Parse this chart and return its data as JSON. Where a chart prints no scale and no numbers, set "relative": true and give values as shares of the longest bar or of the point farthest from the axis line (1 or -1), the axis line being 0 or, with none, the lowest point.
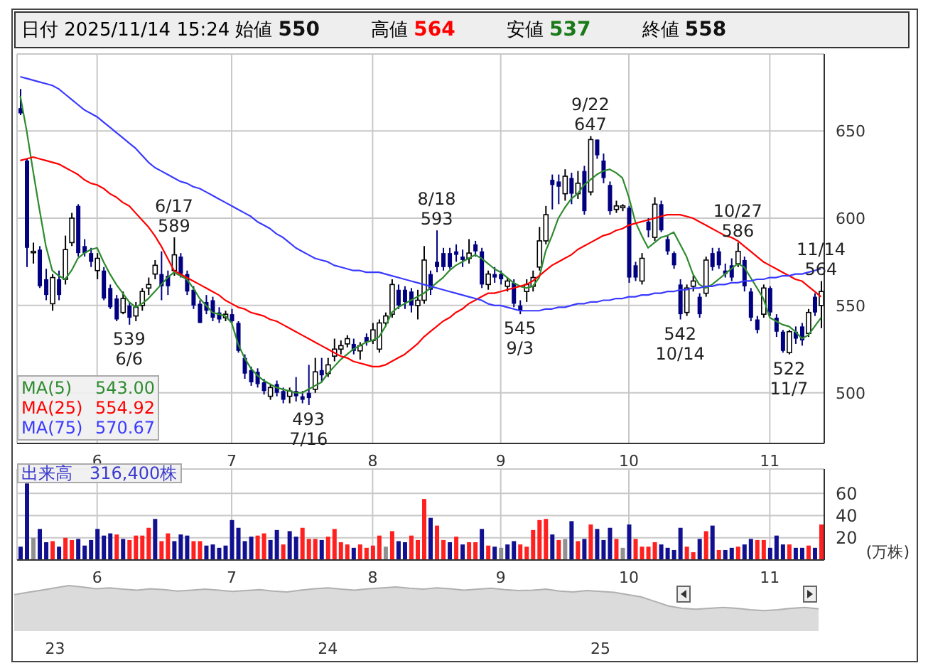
{
  "chart_data": [
    {
      "type": "candlestick",
      "title": "日付 2025/11/14 15:24",
      "categories": [
        null,
        null,
        null,
        null,
        null,
        null,
        null,
        null,
        null,
        null,
        null,
        null,
        "6",
        null,
        null,
        null,
        null,
        null,
        null,
        null,
        null,
        null,
        null,
        null,
        null,
        null,
        null,
        null,
        null,
        null,
        null,
        null,
        null,
        "7",
        null,
        null,
        null,
        null,
        null,
        null,
        null,
        null,
        null,
        null,
        null,
        null,
        null,
        null,
        null,
        null,
        null,
        null,
        null,
        null,
        null,
        "8",
        null,
        null,
        null,
        null,
        null,
        null,
        null,
        null,
        null,
        null,
        null,
        null,
        null,
        null,
        null,
        null,
        null,
        null,
        null,
        "9",
        null,
        null,
        null,
        null,
        null,
        null,
        null,
        null,
        null,
        null,
        null,
        null,
        null,
        null,
        null,
        null,
        null,
        null,
        null,
        "10",
        null,
        null,
        null,
        null,
        null,
        null,
        null,
        null,
        null,
        null,
        null,
        null,
        null,
        null,
        null,
        null,
        null,
        null,
        null,
        null,
        null,
        "11",
        null,
        null,
        null,
        null,
        null,
        null,
        null,
        null
      ],
      "ohlc": [
        [
          663,
          674,
          659,
          660
        ],
        [
          633,
          634,
          572,
          583
        ],
        [
          581,
          586,
          574,
          581
        ],
        [
          582,
          584,
          560,
          561
        ],
        [
          565,
          571,
          553,
          556
        ],
        [
          551,
          568,
          547,
          566
        ],
        [
          565,
          570,
          553,
          556
        ],
        [
          565,
          590,
          562,
          582
        ],
        [
          586,
          603,
          584,
          600
        ],
        [
          607,
          608,
          578,
          580
        ],
        [
          584,
          588,
          578,
          580
        ],
        [
          580,
          583,
          572,
          575
        ],
        [
          570,
          580,
          565,
          577
        ],
        [
          570,
          572,
          553,
          554
        ],
        [
          560,
          562,
          548,
          549
        ],
        [
          554,
          556,
          541,
          542
        ],
        [
          546,
          558,
          545,
          554
        ],
        [
          550,
          552,
          539,
          543
        ],
        [
          544,
          552,
          541,
          549
        ],
        [
          550,
          560,
          547,
          558
        ],
        [
          560,
          566,
          556,
          562
        ],
        [
          568,
          576,
          565,
          573
        ],
        [
          568,
          581,
          553,
          561
        ],
        [
          567,
          570,
          556,
          561
        ],
        [
          570,
          589,
          567,
          579
        ],
        [
          578,
          580,
          566,
          568
        ],
        [
          568,
          570,
          556,
          558
        ],
        [
          559,
          561,
          548,
          550
        ],
        [
          551,
          553,
          540,
          540
        ],
        [
          552,
          556,
          545,
          547
        ],
        [
          553,
          555,
          541,
          543
        ],
        [
          546,
          549,
          540,
          542
        ],
        [
          543,
          547,
          541,
          545
        ],
        [
          545,
          548,
          540,
          541
        ],
        [
          540,
          541,
          523,
          524
        ],
        [
          520,
          522,
          508,
          511
        ],
        [
          513,
          515,
          504,
          506
        ],
        [
          512,
          514,
          503,
          505
        ],
        [
          506,
          508,
          499,
          501
        ],
        [
          498,
          505,
          496,
          503
        ],
        [
          505,
          507,
          498,
          500
        ],
        [
          501,
          503,
          494,
          496
        ],
        [
          498,
          503,
          494,
          501
        ],
        [
          501,
          509,
          495,
          498
        ],
        [
          498,
          501,
          494,
          496
        ],
        [
          500,
          516,
          493,
          497
        ],
        [
          502,
          520,
          500,
          512
        ],
        [
          513,
          520,
          506,
          510
        ],
        [
          511,
          520,
          509,
          516
        ],
        [
          521,
          531,
          518,
          525
        ],
        [
          525,
          530,
          522,
          527
        ],
        [
          528,
          533,
          526,
          531
        ],
        [
          528,
          531,
          522,
          524
        ],
        [
          524,
          529,
          519,
          527
        ],
        [
          532,
          534,
          527,
          529
        ],
        [
          530,
          540,
          528,
          536
        ],
        [
          525,
          542,
          523,
          540
        ],
        [
          540,
          546,
          538,
          544
        ],
        [
          545,
          565,
          543,
          562
        ],
        [
          559,
          562,
          548,
          550
        ],
        [
          559,
          561,
          548,
          552
        ],
        [
          558,
          560,
          546,
          550
        ],
        [
          550,
          559,
          542,
          553
        ],
        [
          553,
          584,
          551,
          576
        ],
        [
          568,
          570,
          556,
          559
        ],
        [
          575,
          593,
          569,
          572
        ],
        [
          580,
          583,
          570,
          572
        ],
        [
          580,
          583,
          571,
          572
        ],
        [
          581,
          585,
          575,
          579
        ],
        [
          578,
          582,
          572,
          576
        ],
        [
          577,
          588,
          574,
          580
        ],
        [
          585,
          587,
          578,
          581
        ],
        [
          581,
          583,
          560,
          562
        ],
        [
          562,
          570,
          559,
          568
        ],
        [
          568,
          572,
          563,
          566
        ],
        [
          568,
          570,
          562,
          565
        ],
        [
          561,
          566,
          558,
          564
        ],
        [
          563,
          565,
          549,
          551
        ],
        [
          550,
          553,
          545,
          547
        ],
        [
          558,
          565,
          552,
          562
        ],
        [
          561,
          570,
          558,
          566
        ],
        [
          572,
          595,
          570,
          587
        ],
        [
          587,
          607,
          585,
          602
        ],
        [
          622,
          625,
          605,
          619
        ],
        [
          621,
          625,
          608,
          618
        ],
        [
          614,
          628,
          610,
          624
        ],
        [
          623,
          626,
          608,
          614
        ],
        [
          614,
          627,
          611,
          620
        ],
        [
          627,
          630,
          602,
          604
        ],
        [
          615,
          647,
          613,
          645
        ],
        [
          645,
          645,
          634,
          636
        ],
        [
          633,
          637,
          620,
          623
        ],
        [
          619,
          621,
          602,
          604
        ],
        [
          605,
          610,
          603,
          607
        ],
        [
          606,
          608,
          604,
          607
        ],
        [
          606,
          607,
          563,
          566
        ],
        [
          573,
          575,
          564,
          566
        ],
        [
          564,
          580,
          562,
          577
        ],
        [
          598,
          600,
          589,
          593
        ],
        [
          589,
          612,
          587,
          608
        ],
        [
          608,
          610,
          592,
          593
        ],
        [
          588,
          590,
          579,
          581
        ],
        [
          580,
          581,
          571,
          573
        ],
        [
          562,
          565,
          542,
          545
        ],
        [
          546,
          562,
          544,
          560
        ],
        [
          561,
          567,
          558,
          564
        ],
        [
          555,
          557,
          543,
          545
        ],
        [
          557,
          578,
          555,
          576
        ],
        [
          580,
          583,
          570,
          572
        ],
        [
          581,
          583,
          571,
          573
        ],
        [
          570,
          574,
          566,
          568
        ],
        [
          573,
          577,
          564,
          566
        ],
        [
          574,
          586,
          572,
          581
        ],
        [
          576,
          578,
          558,
          561
        ],
        [
          558,
          560,
          541,
          543
        ],
        [
          542,
          544,
          534,
          536
        ],
        [
          545,
          562,
          543,
          560
        ],
        [
          560,
          561,
          544,
          546
        ],
        [
          543,
          545,
          532,
          535
        ],
        [
          535,
          536,
          523,
          524
        ],
        [
          523,
          536,
          522,
          535
        ],
        [
          535,
          538,
          528,
          531
        ],
        [
          538,
          540,
          527,
          530
        ],
        [
          534,
          548,
          532,
          546
        ],
        [
          555,
          557,
          544,
          546
        ],
        [
          550,
          564,
          537,
          558
        ]
      ],
      "series": [
        {
          "name": "MA(5) 543.00",
          "type": "line",
          "color": "#2e8b2e",
          "values": [
            670,
            650,
            627,
            605,
            584,
            570,
            567,
            565,
            570,
            577,
            580,
            582,
            583,
            575,
            568,
            562,
            557,
            552,
            549,
            551,
            554,
            558,
            562,
            566,
            569,
            567,
            565,
            560,
            554,
            550,
            546,
            545,
            544,
            540,
            528,
            520,
            514,
            510,
            507,
            505,
            503,
            502,
            501,
            500,
            500,
            502,
            504,
            506,
            511,
            515,
            519,
            522,
            525,
            527,
            529,
            530,
            532,
            538,
            546,
            549,
            551,
            553,
            555,
            557,
            560,
            563,
            566,
            570,
            573,
            575,
            577,
            579,
            577,
            574,
            571,
            569,
            566,
            563,
            561,
            560,
            561,
            566,
            581,
            590,
            600,
            606,
            611,
            614,
            619,
            622,
            625,
            627,
            628,
            626,
            623,
            612,
            598,
            590,
            583,
            586,
            589,
            590,
            592,
            585,
            578,
            568,
            562,
            560,
            562,
            565,
            568,
            571,
            574,
            572,
            566,
            560,
            554,
            543,
            541,
            539,
            538,
            535,
            531,
            533,
            538,
            543.0
          ]
        },
        {
          "name": "MA(25) 554.92",
          "type": "line",
          "color": "#ff0000",
          "values": [
            633,
            634,
            635,
            634,
            633,
            632,
            631,
            629,
            627,
            625,
            622,
            620,
            619,
            617,
            614,
            612,
            609,
            607,
            603,
            599,
            595,
            590,
            584,
            577,
            570,
            568,
            566,
            564,
            562,
            560,
            558,
            556,
            553,
            551,
            549,
            548,
            546,
            545,
            544,
            542,
            541,
            539,
            537,
            535,
            533,
            531,
            529,
            527,
            525,
            523,
            521,
            520,
            518,
            517,
            516,
            515,
            515,
            516,
            518,
            520,
            522,
            525,
            528,
            532,
            535,
            538,
            541,
            543,
            546,
            548,
            551,
            553,
            555,
            557,
            557,
            558,
            559,
            560,
            561,
            562,
            564,
            567,
            570,
            573,
            575,
            577,
            579,
            582,
            584,
            586,
            588,
            590,
            591,
            593,
            594,
            596,
            597,
            598,
            599,
            600,
            601,
            602,
            602,
            602,
            601,
            600,
            598,
            596,
            594,
            592,
            590,
            589,
            587,
            584,
            581,
            578,
            575,
            573,
            571,
            569,
            567,
            565,
            564,
            561,
            558,
            555
          ]
        },
        {
          "name": "MA(75) 570.67",
          "type": "line",
          "color": "#3a3aff",
          "values": [
            681,
            680,
            679,
            678,
            677,
            676,
            674,
            671,
            668,
            665,
            662,
            660,
            658,
            655,
            652,
            649,
            646,
            643,
            640,
            636,
            632,
            629,
            627,
            625,
            623,
            621,
            620,
            618,
            617,
            615,
            613,
            611,
            609,
            607,
            605,
            603,
            601,
            598,
            596,
            594,
            591,
            589,
            586,
            583,
            581,
            579,
            577,
            576,
            575,
            573,
            572,
            571,
            570,
            570,
            569,
            569,
            569,
            568,
            567,
            566,
            565,
            564,
            563,
            562,
            561,
            560,
            559,
            558,
            557,
            556,
            555,
            554,
            553,
            551,
            550,
            550,
            549,
            548,
            547,
            547,
            547,
            547,
            548,
            548,
            549,
            549,
            550,
            551,
            551,
            552,
            552,
            553,
            553,
            554,
            554,
            555,
            555,
            556,
            556,
            557,
            557,
            558,
            558,
            559,
            559,
            560,
            560,
            561,
            561,
            562,
            562,
            563,
            563,
            564,
            564,
            565,
            565,
            566,
            566,
            567,
            567,
            568,
            568,
            569,
            570,
            571
          ]
        }
      ],
      "ylim": [
        471,
        694
      ],
      "yticks": [
        500,
        550,
        600,
        650
      ],
      "grid": true,
      "legend": "bottom left",
      "annotations": [
        "始値 550",
        "高値 564",
        "安値 537",
        "終値 558",
        {
          "text": "6/17\n589",
          "y": 589
        },
        {
          "text": "539\n6/6",
          "y": 539
        },
        {
          "text": "493\n7/16",
          "y": 493
        },
        {
          "text": "8/18\n593",
          "y": 593
        },
        {
          "text": "545\n9/3",
          "y": 545
        },
        {
          "text": "9/22\n647",
          "y": 647
        },
        {
          "text": "542\n10/14",
          "y": 542
        },
        {
          "text": "10/27\n586",
          "y": 586
        },
        {
          "text": "522\n11/7",
          "y": 522
        },
        {
          "text": "11/14\n564",
          "y": 564
        }
      ]
    },
    {
      "type": "bar",
      "categories": [
        null,
        null,
        null,
        null,
        null,
        null,
        null,
        null,
        null,
        null,
        null,
        null,
        "6",
        null,
        null,
        null,
        null,
        null,
        null,
        null,
        null,
        null,
        null,
        null,
        null,
        null,
        null,
        null,
        null,
        null,
        null,
        null,
        null,
        "7",
        null,
        null,
        null,
        null,
        null,
        null,
        null,
        null,
        null,
        null,
        null,
        null,
        null,
        null,
        null,
        null,
        null,
        null,
        null,
        null,
        null,
        "8",
        null,
        null,
        null,
        null,
        null,
        null,
        null,
        null,
        null,
        null,
        null,
        null,
        null,
        null,
        null,
        null,
        null,
        null,
        null,
        "9",
        null,
        null,
        null,
        null,
        null,
        null,
        null,
        null,
        null,
        null,
        null,
        null,
        null,
        null,
        null,
        null,
        null,
        null,
        null,
        "10",
        null,
        null,
        null,
        null,
        null,
        null,
        null,
        null,
        null,
        null,
        null,
        null,
        null,
        null,
        null,
        null,
        null,
        null,
        null,
        null,
        null,
        "11",
        null,
        null,
        null,
        null,
        null,
        null,
        null,
        null
      ],
      "values": [
        12,
        69,
        20,
        28,
        16,
        17,
        12,
        20,
        18,
        19,
        13,
        18,
        28,
        22,
        24,
        23,
        19,
        18,
        22,
        22,
        29,
        37,
        17,
        24,
        17,
        23,
        22,
        17,
        17,
        13,
        14,
        11,
        13,
        36,
        29,
        17,
        21,
        22,
        24,
        18,
        27,
        14,
        26,
        21,
        29,
        19,
        19,
        18,
        21,
        28,
        16,
        14,
        11,
        14,
        11,
        13,
        22,
        12,
        26,
        17,
        16,
        22,
        18,
        55,
        38,
        31,
        18,
        16,
        21,
        14,
        16,
        16,
        28,
        13,
        12,
        11,
        14,
        17,
        14,
        12,
        27,
        36,
        37,
        23,
        18,
        19,
        35,
        17,
        19,
        32,
        28,
        18,
        29,
        19,
        11,
        32,
        19,
        12,
        12,
        16,
        14,
        11,
        9,
        29,
        12,
        7,
        19,
        26,
        31,
        9,
        9,
        11,
        12,
        14,
        19,
        18,
        18,
        11,
        22,
        14,
        14,
        11,
        11,
        13,
        11,
        32
      ],
      "colors": [
        "#101090",
        "#101090",
        "#909090",
        "#101090",
        "#101090",
        "#ff2020",
        "#101090",
        "#ff2020",
        "#ff2020",
        "#101090",
        "#101090",
        "#101090",
        "#101090",
        "#101090",
        "#101090",
        "#ff2020",
        "#101090",
        "#ff2020",
        "#ff2020",
        "#ff2020",
        "#ff2020",
        "#101090",
        "#ff2020",
        "#ff2020",
        "#101090",
        "#101090",
        "#101090",
        "#ff2020",
        "#ff2020",
        "#101090",
        "#101090",
        "#101090",
        "#101090",
        "#101090",
        "#101090",
        "#101090",
        "#101090",
        "#ff2020",
        "#ff2020",
        "#101090",
        "#101090",
        "#ff2020",
        "#101090",
        "#101090",
        "#ff2020",
        "#ff2020",
        "#ff2020",
        "#101090",
        "#ff2020",
        "#ff2020",
        "#ff2020",
        "#ff2020",
        "#101090",
        "#ff2020",
        "#ff2020",
        "#ff2020",
        "#ff2020",
        "#909090",
        "#ff2020",
        "#101090",
        "#101090",
        "#ff2020",
        "#ff2020",
        "#ff2020",
        "#101090",
        "#ff2020",
        "#ff2020",
        "#101090",
        "#ff2020",
        "#101090",
        "#ff2020",
        "#ff2020",
        "#101090",
        "#ff2020",
        "#101090",
        "#909090",
        "#101090",
        "#101090",
        "#ff2020",
        "#ff2020",
        "#ff2020",
        "#ff2020",
        "#ff2020",
        "#101090",
        "#ff2020",
        "#909090",
        "#101090",
        "#ff2020",
        "#101090",
        "#ff2020",
        "#101090",
        "#101090",
        "#101090",
        "#ff2020",
        "#909090",
        "#101090",
        "#ff2020",
        "#ff2020",
        "#ff2020",
        "#ff2020",
        "#101090",
        "#101090",
        "#101090",
        "#101090",
        "#ff2020",
        "#ff2020",
        "#101090",
        "#ff2020",
        "#101090",
        "#ff2020",
        "#101090",
        "#101090",
        "#ff2020",
        "#101090",
        "#101090",
        "#ff2020",
        "#ff2020",
        "#101090",
        "#101090",
        "#101090",
        "#ff2020",
        "#101090",
        "#101090",
        "#ff2020",
        "#101090",
        "#ff2020"
      ],
      "ylim": [
        0,
        82
      ],
      "yticks": [
        20,
        40,
        60
      ],
      "ylabel": "(万株)",
      "grid": true,
      "annotations": [
        "出来高　316,400株"
      ]
    },
    {
      "type": "area",
      "relative": true,
      "color": "#b0b0b0",
      "categories": [
        null,
        null,
        null,
        "23",
        null,
        null,
        null,
        null,
        null,
        null,
        null,
        null,
        null,
        null,
        null,
        null,
        null,
        null,
        null,
        null,
        null,
        null,
        null,
        "24",
        null,
        null,
        null,
        null,
        null,
        null,
        null,
        null,
        null,
        null,
        null,
        null,
        null,
        null,
        null,
        null,
        null,
        null,
        null,
        "25",
        null,
        null,
        null,
        null,
        null,
        null,
        null,
        null,
        null,
        null,
        null,
        null,
        null,
        null,
        null,
        null
      ],
      "values": [
        0.8,
        0.85,
        0.9,
        0.95,
        1,
        0.97,
        0.93,
        0.95,
        0.92,
        0.9,
        0.93,
        0.91,
        0.88,
        0.9,
        0.92,
        0.9,
        0.87,
        0.89,
        0.91,
        0.88,
        0.86,
        0.9,
        0.93,
        0.95,
        0.92,
        0.9,
        0.93,
        0.95,
        0.97,
        0.94,
        0.92,
        0.95,
        0.93,
        0.9,
        0.92,
        0.94,
        0.91,
        0.89,
        0.9,
        0.92,
        0.88,
        0.86,
        0.89,
        0.87,
        0.85,
        0.8,
        0.75,
        0.65,
        0.55,
        0.5,
        0.48,
        0.5,
        0.52,
        0.5,
        0.47,
        0.45,
        0.47,
        0.5,
        0.52,
        0.49
      ]
    }
  ]
}
